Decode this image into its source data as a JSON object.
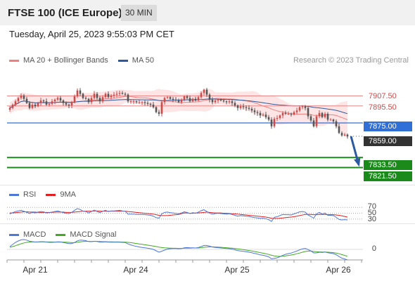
{
  "header": {
    "title": "FTSE 100 (ICE Europe)",
    "timeframe": "30 MIN"
  },
  "timestamp": "Tuesday, April 25, 2023 9:55:03 PM CET",
  "legend_main": {
    "item1": "MA 20 + Bollinger Bands",
    "item2": "MA 50",
    "copyright": "Research © 2023 Trading Central"
  },
  "legend_rsi": {
    "item1": "RSI",
    "item2": "9MA"
  },
  "legend_macd": {
    "item1": "MACD",
    "item2": "MACD Signal"
  },
  "colors": {
    "up": "#d04a4a",
    "down": "#555555",
    "ma20": "#f08080",
    "ma50": "#2c5a9e",
    "support": "#1a8a1a",
    "resistance": "#d04a4a",
    "pivot": "#2f6fd6",
    "last": "#333333",
    "rsi": "#4c78d6",
    "rsi_ma": "#e02020",
    "macd": "#4c78d6",
    "macd_signal": "#44aa22"
  },
  "chart_data": {
    "type": "candlestick",
    "ylim": [
      7805,
      7940
    ],
    "x_ticks": [
      "Apr 21",
      "Apr 24",
      "Apr 25",
      "Apr 26"
    ],
    "price_labels": {
      "r2": "7907.50",
      "r1": "7895.50",
      "pivot": "7875.00",
      "last": "7859.00",
      "s1": "7833.50",
      "s2": "7821.50"
    },
    "levels": {
      "r2": 7907.5,
      "r1": 7895.5,
      "pivot": 7875,
      "last": 7859,
      "s1": 7833.5,
      "s2": 7821.5
    },
    "closes": [
      7893,
      7897,
      7901,
      7905,
      7908,
      7904,
      7899,
      7893,
      7897,
      7895,
      7899,
      7902,
      7901,
      7897,
      7898,
      7901,
      7903,
      7905,
      7902,
      7899,
      7897,
      7896,
      7900,
      7907,
      7914,
      7910,
      7905,
      7904,
      7900,
      7905,
      7910,
      7905,
      7901,
      7906,
      7910,
      7906,
      7908,
      7909,
      7910,
      7911,
      7910,
      7909,
      7901,
      7901,
      7901,
      7900,
      7900,
      7900,
      7899,
      7898,
      7897,
      7894,
      7888,
      7886,
      7900,
      7905,
      7906,
      7904,
      7903,
      7902,
      7900,
      7903,
      7907,
      7905,
      7901,
      7904,
      7902,
      7906,
      7911,
      7915,
      7909,
      7903,
      7900,
      7902,
      7903,
      7902,
      7901,
      7900,
      7901,
      7899,
      7896,
      7893,
      7895,
      7894,
      7893,
      7892,
      7890,
      7888,
      7887,
      7884,
      7885,
      7882,
      7879,
      7871,
      7880,
      7881,
      7884,
      7887,
      7886,
      7886,
      7885,
      7888,
      7890,
      7894,
      7895,
      7893,
      7883,
      7878,
      7871,
      7883,
      7887,
      7882,
      7886,
      7879,
      7879,
      7877,
      7871,
      7863,
      7860,
      7861,
      7859
    ],
    "rsi": {
      "levels": [
        "70",
        "50",
        "30"
      ],
      "values": [
        48,
        52,
        56,
        58,
        60,
        57,
        53,
        49,
        53,
        51,
        54,
        56,
        55,
        51,
        52,
        54,
        56,
        58,
        55,
        52,
        50,
        49,
        53,
        60,
        66,
        63,
        57,
        56,
        51,
        56,
        61,
        56,
        52,
        57,
        60,
        56,
        58,
        58,
        59,
        60,
        58,
        57,
        47,
        47,
        47,
        46,
        46,
        46,
        45,
        44,
        43,
        40,
        35,
        33,
        48,
        53,
        54,
        52,
        51,
        50,
        48,
        51,
        55,
        53,
        49,
        52,
        50,
        54,
        59,
        62,
        56,
        50,
        47,
        49,
        50,
        49,
        48,
        47,
        48,
        46,
        43,
        40,
        42,
        41,
        40,
        39,
        37,
        35,
        34,
        32,
        33,
        31,
        28,
        22,
        36,
        38,
        42,
        46,
        45,
        45,
        44,
        48,
        51,
        55,
        56,
        54,
        44,
        39,
        33,
        48,
        53,
        47,
        51,
        43,
        43,
        42,
        36,
        29,
        27,
        28,
        27
      ],
      "ma": [
        51,
        51,
        52,
        53,
        54,
        55,
        55,
        54,
        54,
        54,
        53,
        53,
        53,
        53,
        53,
        53,
        54,
        54,
        54,
        54,
        53,
        53,
        53,
        54,
        55,
        56,
        57,
        57,
        57,
        57,
        58,
        58,
        57,
        57,
        57,
        57,
        57,
        57,
        57,
        57,
        57,
        57,
        56,
        55,
        54,
        53,
        52,
        51,
        50,
        49,
        48,
        47,
        45,
        43,
        42,
        42,
        42,
        43,
        44,
        45,
        46,
        49,
        51,
        51,
        50,
        50,
        51,
        51,
        52,
        53,
        54,
        53,
        52,
        51,
        51,
        51,
        50,
        50,
        49,
        48,
        48,
        47,
        46,
        45,
        44,
        43,
        42,
        41,
        40,
        39,
        38,
        37,
        35,
        33,
        32,
        32,
        33,
        34,
        35,
        36,
        37,
        38,
        40,
        42,
        44,
        46,
        46,
        46,
        45,
        45,
        46,
        46,
        46,
        45,
        45,
        45,
        44,
        43,
        41,
        39,
        37
      ]
    },
    "macd": {
      "zero_label": "0",
      "values": [
        2.0,
        3.5,
        5.0,
        6.0,
        6.8,
        7.0,
        6.6,
        5.8,
        5.5,
        5.2,
        5.3,
        5.5,
        5.5,
        5.2,
        5.0,
        5.0,
        5.1,
        5.4,
        5.3,
        4.9,
        4.5,
        4.1,
        4.1,
        4.9,
        6.1,
        6.6,
        6.5,
        6.2,
        5.6,
        5.5,
        5.8,
        5.6,
        5.2,
        5.2,
        5.4,
        5.2,
        5.1,
        5.1,
        5.1,
        5.1,
        5.0,
        4.9,
        3.9,
        3.2,
        2.6,
        2.1,
        1.7,
        1.4,
        1.1,
        0.8,
        0.5,
        0.0,
        -1.0,
        -2.0,
        -1.3,
        -0.5,
        0.2,
        0.5,
        0.6,
        0.6,
        0.5,
        0.6,
        1.1,
        1.3,
        1.1,
        1.1,
        1.0,
        1.3,
        2.0,
        2.8,
        2.8,
        2.3,
        1.7,
        1.4,
        1.2,
        1.0,
        0.8,
        0.6,
        0.5,
        0.2,
        -0.3,
        -0.9,
        -1.1,
        -1.4,
        -1.7,
        -2.0,
        -2.4,
        -2.9,
        -3.3,
        -3.9,
        -4.2,
        -4.7,
        -5.3,
        -6.7,
        -6.4,
        -6.0,
        -5.2,
        -4.2,
        -3.5,
        -3.0,
        -2.6,
        -1.9,
        -1.2,
        -0.3,
        0.4,
        0.7,
        -0.1,
        -1.1,
        -2.5,
        -2.5,
        -2.0,
        -2.2,
        -1.9,
        -2.4,
        -2.7,
        -3.0,
        -3.8,
        -5.1,
        -6.2,
        -6.8,
        -7.4
      ],
      "signal": [
        1.5,
        2.0,
        2.6,
        3.3,
        4.0,
        4.6,
        5.0,
        5.2,
        5.3,
        5.3,
        5.3,
        5.3,
        5.3,
        5.3,
        5.3,
        5.3,
        5.2,
        5.2,
        5.2,
        5.2,
        5.1,
        5.0,
        4.8,
        4.8,
        5.1,
        5.4,
        5.6,
        5.7,
        5.7,
        5.6,
        5.7,
        5.7,
        5.6,
        5.5,
        5.5,
        5.4,
        5.4,
        5.3,
        5.3,
        5.3,
        5.2,
        5.2,
        5.0,
        4.8,
        4.5,
        4.2,
        3.9,
        3.6,
        3.3,
        3.0,
        2.7,
        2.4,
        2.0,
        1.6,
        1.3,
        1.1,
        1.0,
        0.9,
        0.8,
        0.8,
        0.7,
        0.7,
        0.8,
        0.9,
        0.9,
        1.0,
        1.0,
        1.0,
        1.2,
        1.5,
        1.7,
        1.8,
        1.8,
        1.7,
        1.6,
        1.5,
        1.3,
        1.2,
        1.0,
        0.9,
        0.6,
        0.3,
        0.1,
        -0.2,
        -0.5,
        -0.8,
        -1.1,
        -1.5,
        -1.9,
        -2.3,
        -2.7,
        -3.1,
        -3.6,
        -4.2,
        -4.6,
        -4.9,
        -5.0,
        -4.8,
        -4.6,
        -4.3,
        -4.0,
        -3.6,
        -3.1,
        -2.6,
        -2.0,
        -1.5,
        -1.2,
        -1.2,
        -1.5,
        -1.7,
        -1.8,
        -1.9,
        -1.9,
        -2.0,
        -2.1,
        -2.3,
        -2.6,
        -3.1,
        -3.7,
        -4.3,
        -4.9
      ]
    }
  }
}
